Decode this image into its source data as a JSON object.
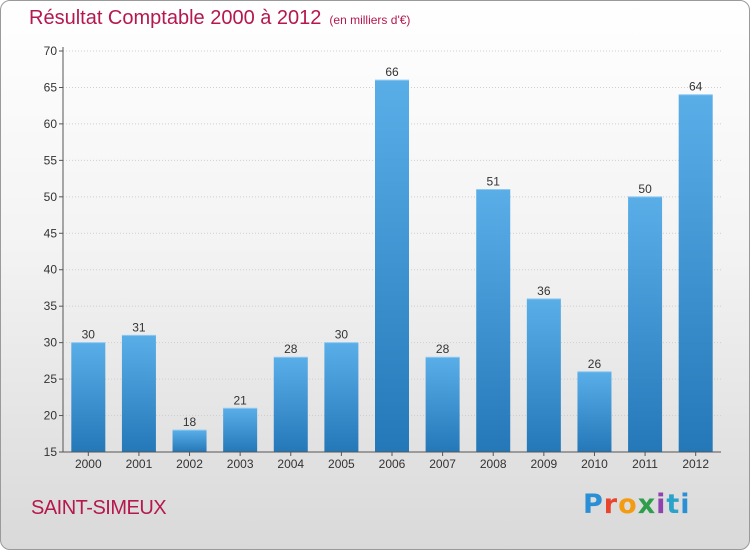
{
  "chart_data": {
    "type": "bar",
    "title": "Résultat Comptable 2000 à 2012",
    "subtitle": "(en milliers d'€)",
    "categories": [
      "2000",
      "2001",
      "2002",
      "2003",
      "2004",
      "2005",
      "2006",
      "2007",
      "2008",
      "2009",
      "2010",
      "2011",
      "2012"
    ],
    "values": [
      30,
      31,
      18,
      21,
      28,
      30,
      66,
      28,
      51,
      36,
      26,
      50,
      64
    ],
    "ylim": [
      15,
      70
    ],
    "yticks": [
      15,
      20,
      25,
      30,
      35,
      40,
      45,
      50,
      55,
      60,
      65,
      70
    ],
    "grid": true,
    "bar_color_top": "#5aaee8",
    "bar_color_bottom": "#2478b8"
  },
  "footer": {
    "location": "SAINT-SIMEUX",
    "brand": [
      "P",
      "r",
      "o",
      "x",
      "i",
      "t",
      "i"
    ]
  },
  "colors": {
    "title": "#b5174f",
    "grid": "#cfcfcf"
  }
}
